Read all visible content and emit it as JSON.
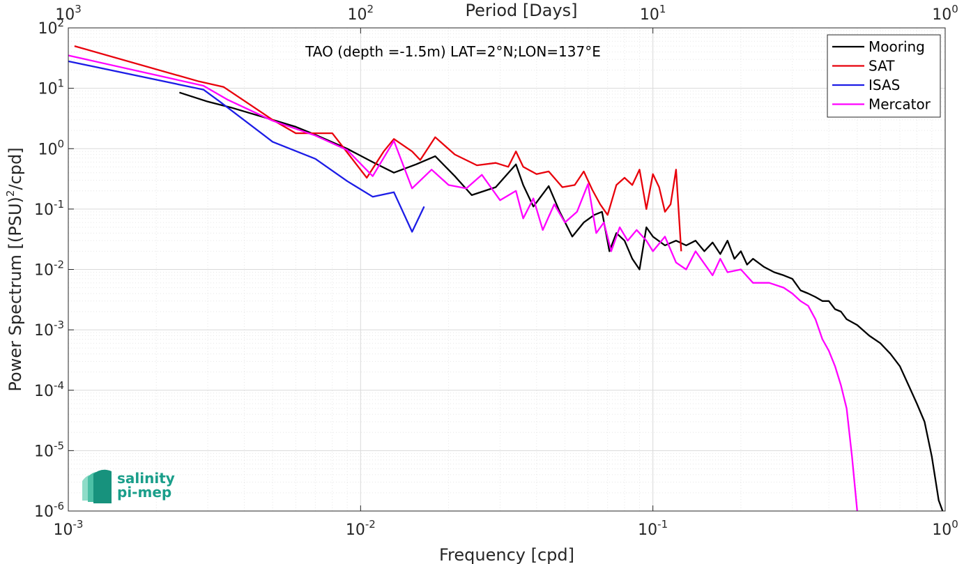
{
  "chart_data": {
    "type": "line",
    "annotation": "TAO (depth =-1.5m) LAT=2°N;LON=137°E",
    "xlabel": "Frequency [cpd]",
    "ylabel": "Power Spectrum [(PSU)",
    "ylabel_sup": "2",
    "ylabel_tail": "/cpd]",
    "top_xlabel": "Period [Days]",
    "x_scale": "log",
    "y_scale": "log",
    "xlim": [
      0.001,
      1
    ],
    "ylim": [
      1e-06,
      100
    ],
    "grid": true,
    "legend_position": "top-right",
    "x_ticks": [
      {
        "base": "10",
        "exp": "-3",
        "value": 0.001
      },
      {
        "base": "10",
        "exp": "-2",
        "value": 0.01
      },
      {
        "base": "10",
        "exp": "-1",
        "value": 0.1
      },
      {
        "base": "10",
        "exp": "0",
        "value": 1
      }
    ],
    "top_ticks": [
      {
        "base": "10",
        "exp": "3",
        "value": 0.001
      },
      {
        "base": "10",
        "exp": "2",
        "value": 0.01
      },
      {
        "base": "10",
        "exp": "1",
        "value": 0.1
      },
      {
        "base": "10",
        "exp": "0",
        "value": 1
      }
    ],
    "y_ticks": [
      {
        "base": "10",
        "exp": "2",
        "value": 100
      },
      {
        "base": "10",
        "exp": "1",
        "value": 10
      },
      {
        "base": "10",
        "exp": "0",
        "value": 1
      },
      {
        "base": "10",
        "exp": "-1",
        "value": 0.1
      },
      {
        "base": "10",
        "exp": "-2",
        "value": 0.01
      },
      {
        "base": "10",
        "exp": "-3",
        "value": 0.001
      },
      {
        "base": "10",
        "exp": "-4",
        "value": 0.0001
      },
      {
        "base": "10",
        "exp": "-5",
        "value": 1e-05
      },
      {
        "base": "10",
        "exp": "-6",
        "value": 1e-06
      }
    ],
    "series": [
      {
        "name": "Mooring",
        "color": "#000000",
        "points": [
          [
            0.0024,
            8.5
          ],
          [
            0.003,
            6
          ],
          [
            0.0036,
            4.8
          ],
          [
            0.005,
            3.0
          ],
          [
            0.006,
            2.3
          ],
          [
            0.007,
            1.7
          ],
          [
            0.009,
            1.0
          ],
          [
            0.011,
            0.6
          ],
          [
            0.013,
            0.4
          ],
          [
            0.0155,
            0.55
          ],
          [
            0.018,
            0.75
          ],
          [
            0.021,
            0.35
          ],
          [
            0.024,
            0.17
          ],
          [
            0.029,
            0.23
          ],
          [
            0.034,
            0.55
          ],
          [
            0.036,
            0.25
          ],
          [
            0.039,
            0.11
          ],
          [
            0.044,
            0.24
          ],
          [
            0.048,
            0.09
          ],
          [
            0.053,
            0.035
          ],
          [
            0.058,
            0.06
          ],
          [
            0.063,
            0.08
          ],
          [
            0.067,
            0.09
          ],
          [
            0.071,
            0.02
          ],
          [
            0.075,
            0.04
          ],
          [
            0.08,
            0.03
          ],
          [
            0.085,
            0.015
          ],
          [
            0.09,
            0.01
          ],
          [
            0.095,
            0.05
          ],
          [
            0.1,
            0.035
          ],
          [
            0.11,
            0.025
          ],
          [
            0.12,
            0.03
          ],
          [
            0.13,
            0.025
          ],
          [
            0.14,
            0.03
          ],
          [
            0.15,
            0.02
          ],
          [
            0.16,
            0.028
          ],
          [
            0.17,
            0.018
          ],
          [
            0.18,
            0.03
          ],
          [
            0.19,
            0.015
          ],
          [
            0.2,
            0.02
          ],
          [
            0.21,
            0.012
          ],
          [
            0.22,
            0.015
          ],
          [
            0.24,
            0.011
          ],
          [
            0.26,
            0.009
          ],
          [
            0.28,
            0.008
          ],
          [
            0.3,
            0.007
          ],
          [
            0.32,
            0.0045
          ],
          [
            0.34,
            0.004
          ],
          [
            0.36,
            0.0035
          ],
          [
            0.38,
            0.003
          ],
          [
            0.4,
            0.003
          ],
          [
            0.42,
            0.0022
          ],
          [
            0.44,
            0.002
          ],
          [
            0.46,
            0.0015
          ],
          [
            0.5,
            0.0012
          ],
          [
            0.55,
            0.0008
          ],
          [
            0.6,
            0.0006
          ],
          [
            0.65,
            0.0004
          ],
          [
            0.7,
            0.00025
          ],
          [
            0.75,
            0.00012
          ],
          [
            0.8,
            6e-05
          ],
          [
            0.85,
            3e-05
          ],
          [
            0.9,
            8e-06
          ],
          [
            0.95,
            1.5e-06
          ],
          [
            0.98,
            1e-06
          ]
        ]
      },
      {
        "name": "SAT",
        "color": "#e8000b",
        "points": [
          [
            0.00105,
            50
          ],
          [
            0.0028,
            13
          ],
          [
            0.0034,
            10.5
          ],
          [
            0.005,
            3.0
          ],
          [
            0.006,
            1.8
          ],
          [
            0.008,
            1.8
          ],
          [
            0.0105,
            0.33
          ],
          [
            0.012,
            0.9
          ],
          [
            0.013,
            1.45
          ],
          [
            0.015,
            0.9
          ],
          [
            0.016,
            0.65
          ],
          [
            0.018,
            1.55
          ],
          [
            0.021,
            0.8
          ],
          [
            0.025,
            0.53
          ],
          [
            0.029,
            0.58
          ],
          [
            0.032,
            0.5
          ],
          [
            0.034,
            0.9
          ],
          [
            0.036,
            0.5
          ],
          [
            0.04,
            0.38
          ],
          [
            0.044,
            0.42
          ],
          [
            0.049,
            0.23
          ],
          [
            0.054,
            0.25
          ],
          [
            0.058,
            0.42
          ],
          [
            0.062,
            0.21
          ],
          [
            0.066,
            0.12
          ],
          [
            0.07,
            0.08
          ],
          [
            0.075,
            0.25
          ],
          [
            0.08,
            0.33
          ],
          [
            0.085,
            0.25
          ],
          [
            0.09,
            0.45
          ],
          [
            0.095,
            0.1
          ],
          [
            0.1,
            0.38
          ],
          [
            0.105,
            0.23
          ],
          [
            0.11,
            0.09
          ],
          [
            0.115,
            0.12
          ],
          [
            0.12,
            0.45
          ],
          [
            0.125,
            0.02
          ]
        ]
      },
      {
        "name": "ISAS",
        "color": "#1c1ce6",
        "points": [
          [
            0.001,
            28
          ],
          [
            0.0029,
            9.5
          ],
          [
            0.0033,
            6
          ],
          [
            0.005,
            1.3
          ],
          [
            0.007,
            0.68
          ],
          [
            0.009,
            0.29
          ],
          [
            0.011,
            0.16
          ],
          [
            0.013,
            0.19
          ],
          [
            0.015,
            0.042
          ],
          [
            0.0165,
            0.11
          ]
        ]
      },
      {
        "name": "Mercator",
        "color": "#ff00ff",
        "points": [
          [
            0.001,
            35
          ],
          [
            0.0029,
            11
          ],
          [
            0.0035,
            6.5
          ],
          [
            0.005,
            2.9
          ],
          [
            0.007,
            1.65
          ],
          [
            0.009,
            0.95
          ],
          [
            0.011,
            0.35
          ],
          [
            0.013,
            1.35
          ],
          [
            0.015,
            0.22
          ],
          [
            0.0175,
            0.45
          ],
          [
            0.02,
            0.25
          ],
          [
            0.023,
            0.22
          ],
          [
            0.026,
            0.37
          ],
          [
            0.03,
            0.14
          ],
          [
            0.034,
            0.2
          ],
          [
            0.036,
            0.07
          ],
          [
            0.039,
            0.15
          ],
          [
            0.042,
            0.045
          ],
          [
            0.046,
            0.12
          ],
          [
            0.05,
            0.06
          ],
          [
            0.055,
            0.09
          ],
          [
            0.06,
            0.26
          ],
          [
            0.064,
            0.04
          ],
          [
            0.068,
            0.06
          ],
          [
            0.072,
            0.02
          ],
          [
            0.077,
            0.05
          ],
          [
            0.082,
            0.03
          ],
          [
            0.088,
            0.045
          ],
          [
            0.095,
            0.03
          ],
          [
            0.1,
            0.02
          ],
          [
            0.11,
            0.035
          ],
          [
            0.12,
            0.013
          ],
          [
            0.13,
            0.01
          ],
          [
            0.14,
            0.02
          ],
          [
            0.16,
            0.008
          ],
          [
            0.17,
            0.015
          ],
          [
            0.18,
            0.009
          ],
          [
            0.2,
            0.01
          ],
          [
            0.22,
            0.006
          ],
          [
            0.25,
            0.006
          ],
          [
            0.28,
            0.005
          ],
          [
            0.3,
            0.004
          ],
          [
            0.32,
            0.003
          ],
          [
            0.34,
            0.0025
          ],
          [
            0.36,
            0.0015
          ],
          [
            0.38,
            0.0007
          ],
          [
            0.4,
            0.00045
          ],
          [
            0.42,
            0.00025
          ],
          [
            0.44,
            0.00012
          ],
          [
            0.46,
            5e-05
          ],
          [
            0.48,
            8e-06
          ],
          [
            0.5,
            1e-06
          ]
        ]
      }
    ]
  }
}
